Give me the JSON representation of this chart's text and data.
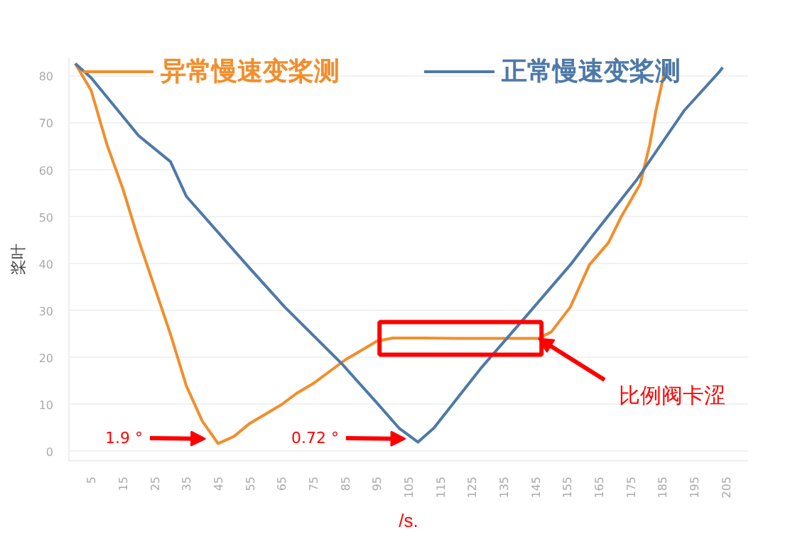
{
  "chart_data": {
    "type": "line",
    "ylabel": "桨叶",
    "xlabel": "/s.",
    "series": [
      {
        "name": "异常慢速变桨测",
        "color": "#f28e2b",
        "x": [
          0,
          5,
          10,
          15,
          20,
          25,
          30,
          35,
          40,
          45,
          50,
          55,
          60,
          65,
          70,
          75,
          80,
          85,
          90,
          95,
          100,
          110,
          120,
          130,
          140,
          146,
          150,
          156,
          162,
          168,
          172,
          178,
          181,
          183,
          186
        ],
        "values": [
          82.7,
          77,
          65.4,
          56,
          45,
          35,
          25,
          14,
          6.5,
          1.7,
          3.2,
          6,
          8,
          10,
          12.5,
          14.5,
          17,
          19.5,
          21.5,
          23.5,
          24.2,
          24.2,
          24.1,
          24.1,
          24.1,
          24.1,
          25.5,
          30.8,
          39.8,
          44.5,
          50,
          57,
          65.4,
          72.8,
          82
        ]
      },
      {
        "name": "正常慢速变桨测",
        "color": "#4e79a7",
        "x": [
          0,
          5,
          20,
          30,
          35,
          54,
          66,
          84,
          95,
          102,
          108,
          113,
          128,
          142,
          156,
          163,
          177,
          192,
          203,
          204
        ],
        "values": [
          82.7,
          79.7,
          67.3,
          61.8,
          54.4,
          39.8,
          30.8,
          18.7,
          10.4,
          5,
          2,
          5,
          17.9,
          28.8,
          39.8,
          46,
          58,
          72.8,
          81,
          81.9
        ]
      }
    ],
    "xlim": [
      -2,
      212
    ],
    "xticks": [
      5,
      15,
      25,
      35,
      45,
      55,
      65,
      75,
      85,
      95,
      105,
      115,
      125,
      135,
      145,
      155,
      165,
      175,
      185,
      195,
      205
    ],
    "ylim": [
      -2,
      84
    ],
    "yticks": [
      0,
      10,
      20,
      30,
      40,
      50,
      60,
      70,
      80
    ],
    "grid": "y",
    "legend": "top",
    "annotations": [
      {
        "text": "1.9 °",
        "x": 41,
        "y": 2.7
      },
      {
        "text": "0.72 °",
        "x": 104,
        "y": 2.7
      },
      {
        "text": "比例阀卡涩",
        "x": 146,
        "y": 24.1
      }
    ]
  }
}
